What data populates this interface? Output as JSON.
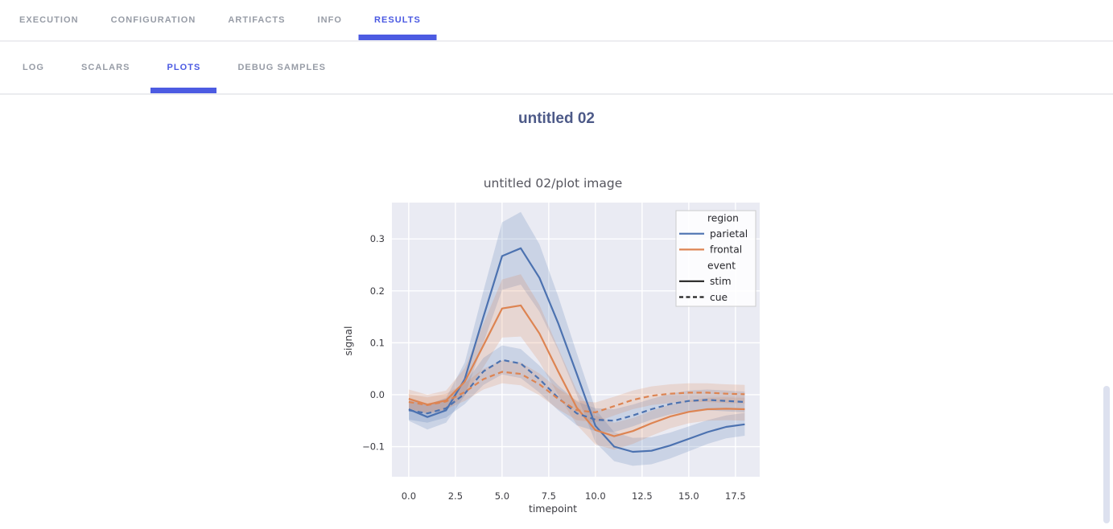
{
  "nav": {
    "tabs": [
      {
        "label": "EXECUTION",
        "active": false
      },
      {
        "label": "CONFIGURATION",
        "active": false
      },
      {
        "label": "ARTIFACTS",
        "active": false
      },
      {
        "label": "INFO",
        "active": false
      },
      {
        "label": "RESULTS",
        "active": true
      }
    ],
    "subtabs": [
      {
        "label": "LOG",
        "active": false
      },
      {
        "label": "SCALARS",
        "active": false
      },
      {
        "label": "PLOTS",
        "active": true
      },
      {
        "label": "DEBUG SAMPLES",
        "active": false
      }
    ]
  },
  "page": {
    "section_title": "untitled 02"
  },
  "colors": {
    "accent_blue": "#4c5be2",
    "inactive_tab": "#979ca6",
    "section_title": "#4d5a88",
    "plot_background": "#eaebf3",
    "gridline": "#ffffff",
    "series_blue": "#4c72b0",
    "series_orange": "#dd8452",
    "legend_line_black": "#222222"
  },
  "chart_data": {
    "type": "line",
    "title": "untitled 02/plot image",
    "xlabel": "timepoint",
    "ylabel": "signal",
    "grid": true,
    "legend_position": "upper right",
    "xlim": [
      -0.9,
      18.8
    ],
    "ylim": [
      -0.158,
      0.37
    ],
    "xticks": {
      "values": [
        0,
        2.5,
        5,
        7.5,
        10,
        12.5,
        15,
        17.5
      ],
      "labels": [
        "0.0",
        "2.5",
        "5.0",
        "7.5",
        "10.0",
        "12.5",
        "15.0",
        "17.5"
      ]
    },
    "yticks": {
      "values": [
        -0.1,
        0.0,
        0.1,
        0.2,
        0.3
      ],
      "labels": [
        "−0.1",
        "0.0",
        "0.1",
        "0.2",
        "0.3"
      ]
    },
    "x": [
      0,
      1,
      2,
      3,
      4,
      5,
      6,
      7,
      8,
      9,
      10,
      11,
      12,
      13,
      14,
      15,
      16,
      17,
      18
    ],
    "series": [
      {
        "name": "parietal-stim",
        "region": "parietal",
        "event": "stim",
        "color": "#4c72b0",
        "style": "solid",
        "values": [
          -0.028,
          -0.043,
          -0.03,
          0.03,
          0.15,
          0.267,
          0.282,
          0.225,
          0.138,
          0.04,
          -0.06,
          -0.1,
          -0.11,
          -0.108,
          -0.098,
          -0.085,
          -0.072,
          -0.062,
          -0.057
        ],
        "ci": [
          0.022,
          0.024,
          0.024,
          0.032,
          0.05,
          0.065,
          0.07,
          0.065,
          0.052,
          0.04,
          0.032,
          0.028,
          0.027,
          0.026,
          0.025,
          0.024,
          0.023,
          0.022,
          0.022
        ]
      },
      {
        "name": "frontal-stim",
        "region": "frontal",
        "event": "stim",
        "color": "#dd8452",
        "style": "solid",
        "values": [
          -0.008,
          -0.019,
          -0.011,
          0.025,
          0.095,
          0.166,
          0.172,
          0.118,
          0.045,
          -0.025,
          -0.068,
          -0.08,
          -0.07,
          -0.055,
          -0.042,
          -0.033,
          -0.028,
          -0.027,
          -0.028
        ],
        "ci": [
          0.018,
          0.019,
          0.019,
          0.026,
          0.042,
          0.056,
          0.06,
          0.055,
          0.045,
          0.033,
          0.028,
          0.026,
          0.025,
          0.024,
          0.023,
          0.022,
          0.022,
          0.022,
          0.022
        ]
      },
      {
        "name": "parietal-cue",
        "region": "parietal",
        "event": "cue",
        "color": "#4c72b0",
        "style": "dashed",
        "values": [
          -0.03,
          -0.036,
          -0.026,
          0.002,
          0.045,
          0.067,
          0.06,
          0.03,
          -0.006,
          -0.036,
          -0.048,
          -0.05,
          -0.04,
          -0.028,
          -0.018,
          -0.012,
          -0.01,
          -0.012,
          -0.014
        ],
        "ci": [
          0.018,
          0.018,
          0.018,
          0.02,
          0.026,
          0.028,
          0.028,
          0.026,
          0.024,
          0.023,
          0.022,
          0.022,
          0.021,
          0.02,
          0.02,
          0.02,
          0.02,
          0.02,
          0.02
        ]
      },
      {
        "name": "frontal-cue",
        "region": "frontal",
        "event": "cue",
        "color": "#dd8452",
        "style": "dashed",
        "values": [
          -0.014,
          -0.02,
          -0.013,
          0.005,
          0.03,
          0.044,
          0.04,
          0.02,
          -0.008,
          -0.03,
          -0.034,
          -0.022,
          -0.01,
          -0.002,
          0.002,
          0.004,
          0.004,
          0.002,
          0.001
        ],
        "ci": [
          0.015,
          0.015,
          0.015,
          0.017,
          0.02,
          0.022,
          0.022,
          0.021,
          0.02,
          0.019,
          0.019,
          0.018,
          0.018,
          0.018,
          0.018,
          0.018,
          0.018,
          0.018,
          0.018
        ]
      }
    ],
    "legend": {
      "entries": [
        {
          "label": "region",
          "type": "header"
        },
        {
          "label": "parietal",
          "type": "line",
          "color": "#4c72b0",
          "style": "solid"
        },
        {
          "label": "frontal",
          "type": "line",
          "color": "#dd8452",
          "style": "solid"
        },
        {
          "label": "event",
          "type": "header"
        },
        {
          "label": "stim",
          "type": "line",
          "color": "#222222",
          "style": "solid"
        },
        {
          "label": "cue",
          "type": "line",
          "color": "#222222",
          "style": "dashed"
        }
      ]
    }
  }
}
